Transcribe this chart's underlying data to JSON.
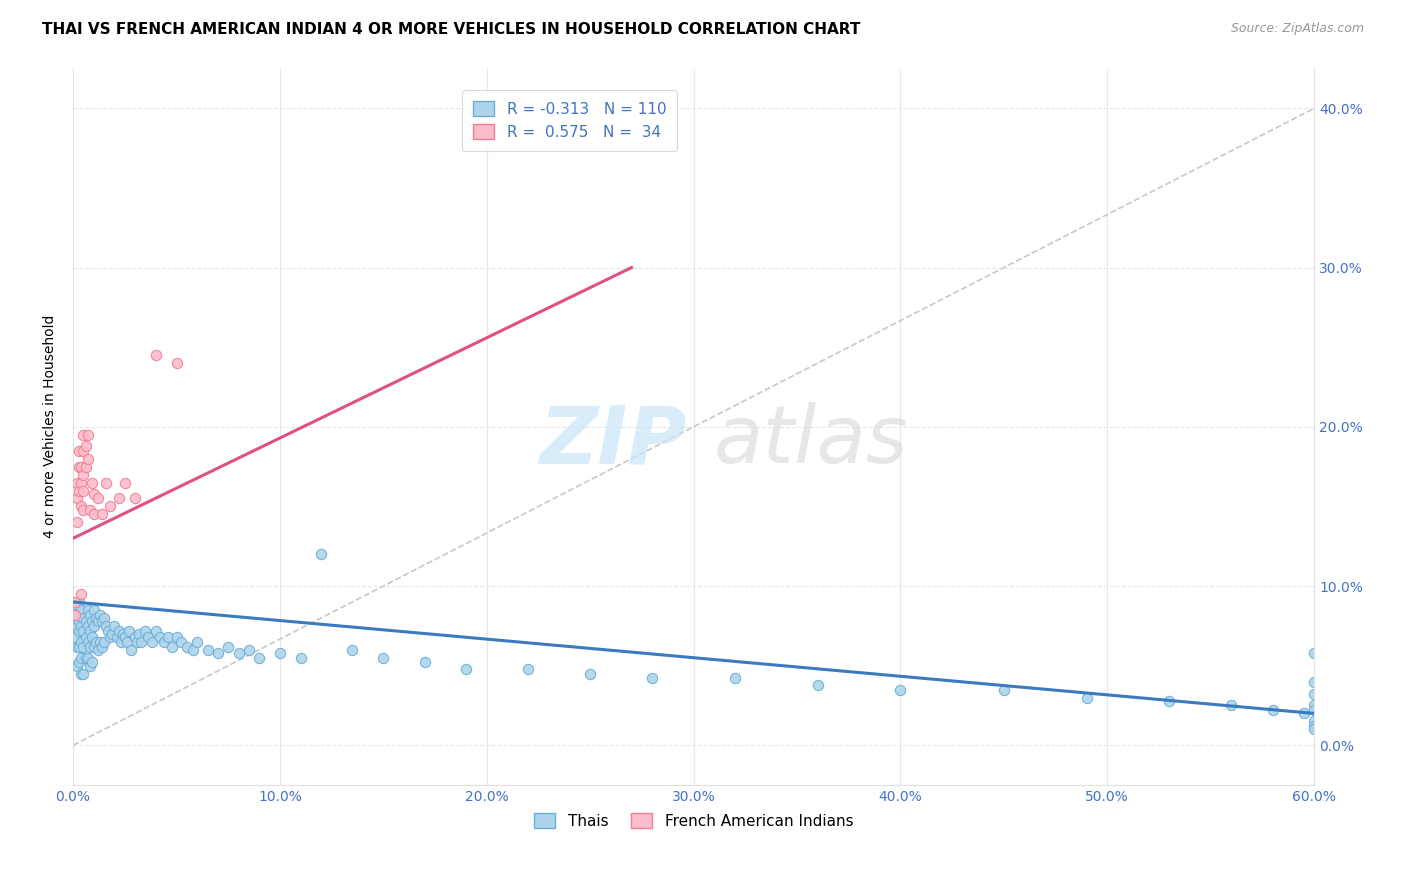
{
  "title": "THAI VS FRENCH AMERICAN INDIAN 4 OR MORE VEHICLES IN HOUSEHOLD CORRELATION CHART",
  "source": "Source: ZipAtlas.com",
  "ylabel": "4 or more Vehicles in Household",
  "xlim": [
    0.0,
    0.6
  ],
  "ylim": [
    -0.025,
    0.425
  ],
  "xtick_vals": [
    0.0,
    0.1,
    0.2,
    0.3,
    0.4,
    0.5,
    0.6
  ],
  "xtick_labels": [
    "0.0%",
    "10.0%",
    "20.0%",
    "30.0%",
    "40.0%",
    "50.0%",
    "60.0%"
  ],
  "ytick_vals": [
    0.0,
    0.1,
    0.2,
    0.3,
    0.4
  ],
  "ytick_labels": [
    "0.0%",
    "10.0%",
    "20.0%",
    "30.0%",
    "40.0%"
  ],
  "legend_thai_label": "R = -0.313   N = 110",
  "legend_fai_label": "R =  0.575   N =  34",
  "legend_thai_bottom": "Thais",
  "legend_fai_bottom": "French American Indians",
  "thai_line_color": "#3a7abf",
  "thai_scatter_face": "#aed4ec",
  "thai_scatter_edge": "#6baed6",
  "fai_line_color": "#e05080",
  "fai_scatter_face": "#fbbccc",
  "fai_scatter_edge": "#f08090",
  "diag_color": "#c8c8c8",
  "grid_color": "#e8e8e8",
  "text_color": "#4472c4",
  "legend_edge_color": "#d0d0d0",
  "thai_trend_x0": 0.0,
  "thai_trend_x1": 0.6,
  "thai_trend_y0": 0.09,
  "thai_trend_y1": 0.02,
  "fai_trend_x0": 0.0,
  "fai_trend_x1": 0.27,
  "fai_trend_y0": 0.13,
  "fai_trend_y1": 0.3,
  "thai_scatter_x": [
    0.001,
    0.001,
    0.002,
    0.002,
    0.002,
    0.002,
    0.003,
    0.003,
    0.003,
    0.003,
    0.003,
    0.004,
    0.004,
    0.004,
    0.004,
    0.004,
    0.005,
    0.005,
    0.005,
    0.005,
    0.006,
    0.006,
    0.006,
    0.007,
    0.007,
    0.007,
    0.007,
    0.008,
    0.008,
    0.008,
    0.008,
    0.009,
    0.009,
    0.009,
    0.01,
    0.01,
    0.01,
    0.011,
    0.011,
    0.012,
    0.012,
    0.013,
    0.013,
    0.014,
    0.014,
    0.015,
    0.015,
    0.016,
    0.017,
    0.018,
    0.019,
    0.02,
    0.021,
    0.022,
    0.023,
    0.024,
    0.025,
    0.026,
    0.027,
    0.028,
    0.03,
    0.031,
    0.032,
    0.033,
    0.035,
    0.036,
    0.038,
    0.04,
    0.042,
    0.044,
    0.046,
    0.048,
    0.05,
    0.052,
    0.055,
    0.058,
    0.06,
    0.065,
    0.07,
    0.075,
    0.08,
    0.085,
    0.09,
    0.1,
    0.11,
    0.12,
    0.135,
    0.15,
    0.17,
    0.19,
    0.22,
    0.25,
    0.28,
    0.32,
    0.36,
    0.4,
    0.45,
    0.49,
    0.53,
    0.56,
    0.58,
    0.595,
    0.6,
    0.6,
    0.6,
    0.6,
    0.6,
    0.6,
    0.6,
    0.6
  ],
  "thai_scatter_y": [
    0.082,
    0.068,
    0.088,
    0.075,
    0.062,
    0.05,
    0.09,
    0.078,
    0.072,
    0.062,
    0.052,
    0.085,
    0.075,
    0.065,
    0.055,
    0.045,
    0.08,
    0.072,
    0.062,
    0.045,
    0.078,
    0.068,
    0.055,
    0.085,
    0.075,
    0.065,
    0.055,
    0.082,
    0.072,
    0.062,
    0.05,
    0.078,
    0.068,
    0.052,
    0.085,
    0.075,
    0.062,
    0.08,
    0.065,
    0.078,
    0.06,
    0.082,
    0.065,
    0.078,
    0.062,
    0.08,
    0.065,
    0.075,
    0.072,
    0.068,
    0.07,
    0.075,
    0.068,
    0.072,
    0.065,
    0.07,
    0.068,
    0.065,
    0.072,
    0.06,
    0.068,
    0.065,
    0.07,
    0.065,
    0.072,
    0.068,
    0.065,
    0.072,
    0.068,
    0.065,
    0.068,
    0.062,
    0.068,
    0.065,
    0.062,
    0.06,
    0.065,
    0.06,
    0.058,
    0.062,
    0.058,
    0.06,
    0.055,
    0.058,
    0.055,
    0.12,
    0.06,
    0.055,
    0.052,
    0.048,
    0.048,
    0.045,
    0.042,
    0.042,
    0.038,
    0.035,
    0.035,
    0.03,
    0.028,
    0.025,
    0.022,
    0.02,
    0.058,
    0.04,
    0.032,
    0.025,
    0.022,
    0.015,
    0.012,
    0.01
  ],
  "fai_scatter_x": [
    0.001,
    0.001,
    0.002,
    0.002,
    0.002,
    0.003,
    0.003,
    0.003,
    0.004,
    0.004,
    0.004,
    0.004,
    0.005,
    0.005,
    0.005,
    0.005,
    0.005,
    0.006,
    0.006,
    0.007,
    0.007,
    0.008,
    0.009,
    0.01,
    0.01,
    0.012,
    0.014,
    0.016,
    0.018,
    0.022,
    0.025,
    0.03,
    0.04,
    0.05
  ],
  "fai_scatter_y": [
    0.09,
    0.082,
    0.165,
    0.155,
    0.14,
    0.185,
    0.175,
    0.16,
    0.175,
    0.165,
    0.15,
    0.095,
    0.195,
    0.185,
    0.17,
    0.16,
    0.148,
    0.188,
    0.175,
    0.195,
    0.18,
    0.148,
    0.165,
    0.158,
    0.145,
    0.155,
    0.145,
    0.165,
    0.15,
    0.155,
    0.165,
    0.155,
    0.245,
    0.24
  ]
}
